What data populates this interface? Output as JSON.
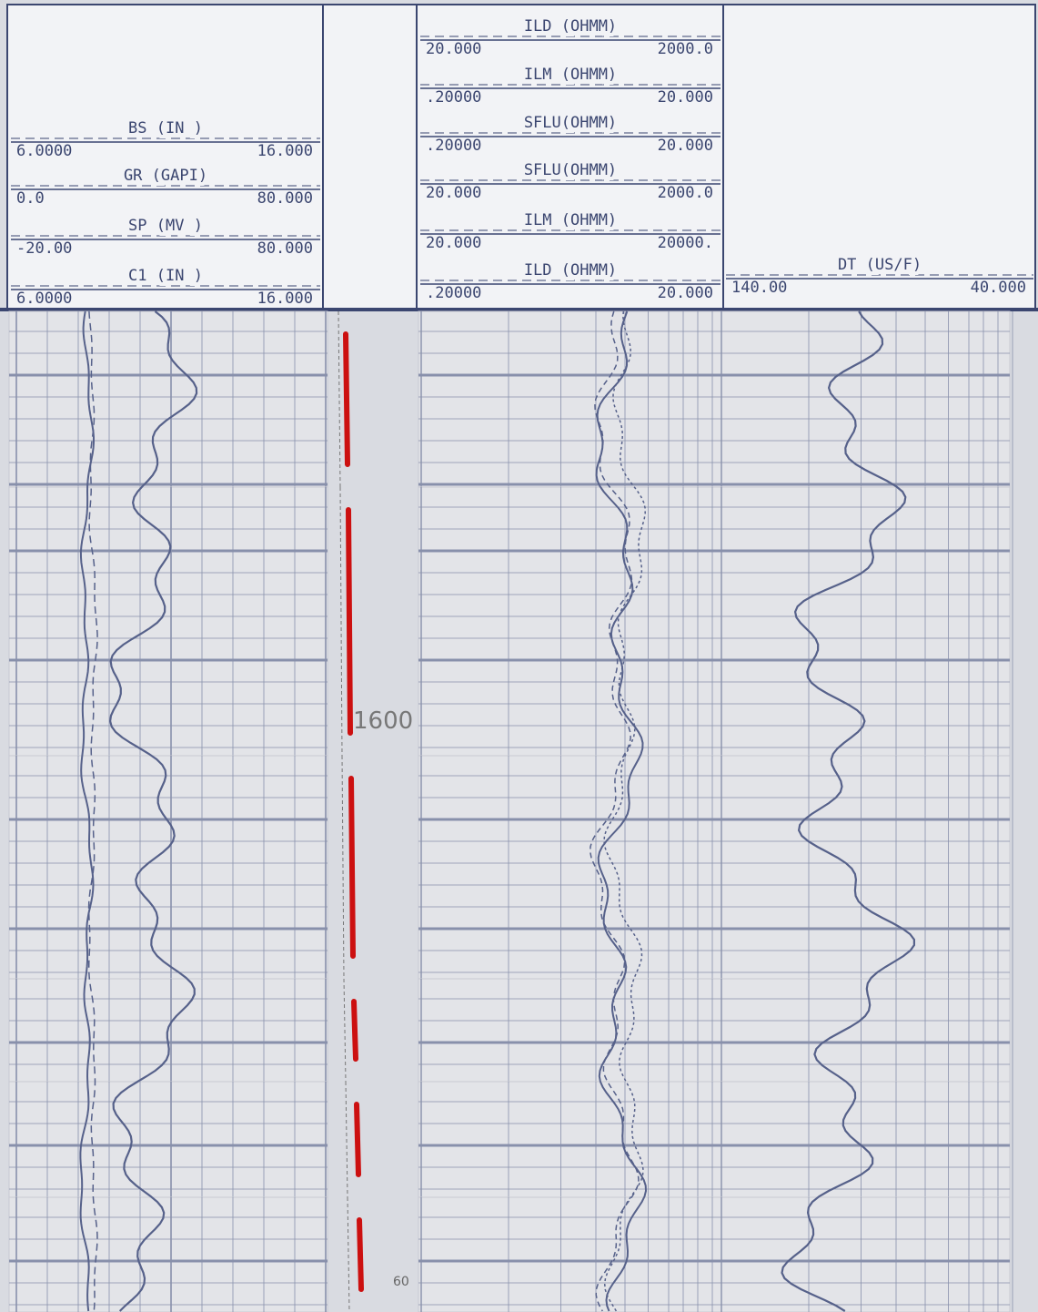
{
  "header": {
    "track_1": [
      {
        "name": "BS (IN )",
        "left": "6.0000",
        "right": "16.000"
      },
      {
        "name": "GR (GAPI)",
        "left": "0.0",
        "right": "80.000"
      },
      {
        "name": "SP (MV )",
        "left": "-20.00",
        "right": "80.000"
      },
      {
        "name": "C1 (IN )",
        "left": "6.0000",
        "right": "16.000"
      }
    ],
    "track_2": [
      {
        "name": "ILD (OHMM)",
        "left": "20.000",
        "right": "2000.0"
      },
      {
        "name": "ILM (OHMM)",
        "left": ".20000",
        "right": "20.000"
      },
      {
        "name": "SFLU(OHMM)",
        "left": ".20000",
        "right": "20.000"
      },
      {
        "name": "SFLU(OHMM)",
        "left": "20.000",
        "right": "2000.0"
      },
      {
        "name": "ILM (OHMM)",
        "left": "20.000",
        "right": "20000."
      },
      {
        "name": "ILD (OHMM)",
        "left": ".20000",
        "right": "20.000"
      }
    ],
    "track_3": [
      {
        "name": "DT (US/F)",
        "left": "140.00",
        "right": "40.000"
      }
    ]
  },
  "depth_labels": [
    "1600",
    "60"
  ]
}
